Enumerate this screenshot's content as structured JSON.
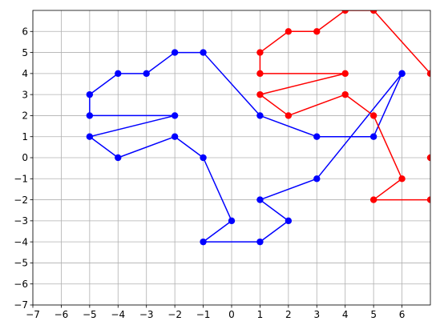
{
  "chart_data": {
    "type": "line",
    "title": "",
    "xlabel": "",
    "ylabel": "",
    "xlim": [
      -7,
      7
    ],
    "ylim": [
      -7,
      7
    ],
    "grid": true,
    "x_ticks": [
      -7,
      -6,
      -5,
      -4,
      -3,
      -2,
      -1,
      0,
      1,
      2,
      3,
      4,
      5,
      6
    ],
    "y_ticks": [
      -7,
      -6,
      -5,
      -4,
      -3,
      -2,
      -1,
      0,
      1,
      2,
      3,
      4,
      5,
      6
    ],
    "x_tick_labels": [
      "−7",
      "−6",
      "−5",
      "−4",
      "−3",
      "−2",
      "−1",
      "0",
      "1",
      "2",
      "3",
      "4",
      "5",
      "6"
    ],
    "y_tick_labels": [
      "−7",
      "−6",
      "−5",
      "−4",
      "−3",
      "−2",
      "−1",
      "0",
      "1",
      "2",
      "3",
      "4",
      "5",
      "6"
    ],
    "series": [
      {
        "color": "#0000ff",
        "marker": "circle",
        "points": [
          [
            6,
            4
          ],
          [
            3,
            -1
          ],
          [
            1,
            -2
          ],
          [
            2,
            -3
          ],
          [
            1,
            -4
          ],
          [
            -1,
            -4
          ],
          [
            0,
            -3
          ],
          [
            -1,
            0
          ],
          [
            -2,
            1
          ],
          [
            -4,
            0
          ],
          [
            -5,
            1
          ],
          [
            -2,
            2
          ],
          [
            -5,
            2
          ],
          [
            -5,
            3
          ],
          [
            -4,
            4
          ],
          [
            -3,
            4
          ],
          [
            -2,
            5
          ],
          [
            -1,
            5
          ],
          [
            1,
            2
          ],
          [
            3,
            1
          ],
          [
            5,
            1
          ],
          [
            6,
            4
          ]
        ]
      },
      {
        "color": "#ff0000",
        "marker": "circle",
        "points": [
          [
            7,
            -2
          ],
          [
            5,
            -2
          ],
          [
            6,
            -1
          ],
          [
            5,
            2
          ],
          [
            4,
            3
          ],
          [
            2,
            2
          ],
          [
            1,
            3
          ],
          [
            4,
            4
          ],
          [
            1,
            4
          ],
          [
            1,
            5
          ],
          [
            2,
            6
          ],
          [
            3,
            6
          ],
          [
            4,
            7
          ],
          [
            5,
            7
          ],
          [
            7,
            4
          ]
        ]
      },
      {
        "color": "#ff0000",
        "marker": "circle",
        "points": [
          [
            7,
            0
          ]
        ]
      }
    ]
  }
}
